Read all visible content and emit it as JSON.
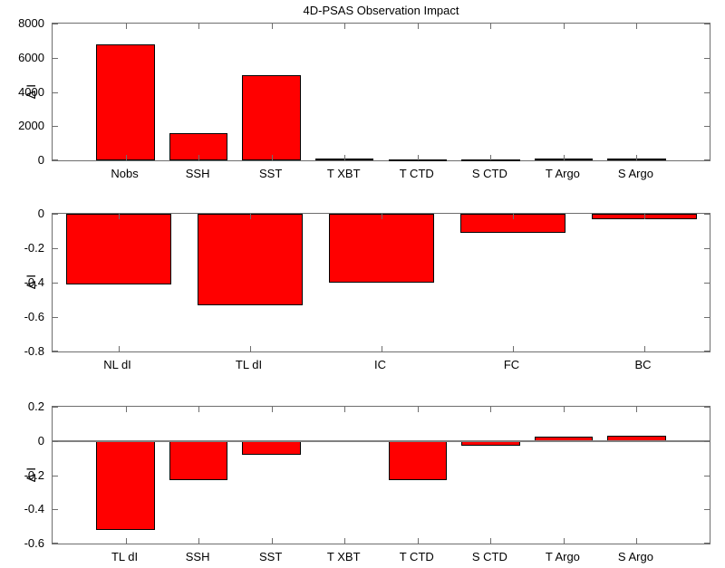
{
  "figure": {
    "background": "#ffffff",
    "bar_fill_color": "#ff0000",
    "bar_edge_color": "#000000",
    "axis_color": "#6e6e6e",
    "zero_line_color": "#808080"
  },
  "chart_data": [
    {
      "type": "bar",
      "title": "4D-PSAS Observation Impact",
      "ylabel": "Δ I",
      "xlabel": "",
      "categories": [
        "Nobs",
        "SSH",
        "SST",
        "T XBT",
        "T CTD",
        "S CTD",
        "T Argo",
        "S Argo"
      ],
      "values": [
        6800,
        1580,
        5000,
        80,
        30,
        30,
        120,
        120
      ],
      "ylim": [
        0,
        8000
      ],
      "yticks": [
        0,
        2000,
        4000,
        6000,
        8000
      ],
      "ytick_labels": [
        "0",
        "2000",
        "4000",
        "6000",
        "8000"
      ],
      "edge_pad": 1.0,
      "bar_frac": 0.8,
      "grid": false,
      "legend": null,
      "zero_line": false
    },
    {
      "type": "bar",
      "title": "",
      "ylabel": "Δ I",
      "xlabel": "",
      "categories": [
        "NL dI",
        "TL dI",
        "IC",
        "FC",
        "BC"
      ],
      "values": [
        -0.41,
        -0.53,
        -0.4,
        -0.11,
        -0.03
      ],
      "ylim": [
        -0.8,
        0
      ],
      "yticks": [
        0,
        -0.2,
        -0.4,
        -0.6,
        -0.8
      ],
      "ytick_labels": [
        "0",
        "-0.2",
        "-0.4",
        "-0.6",
        "-0.8"
      ],
      "edge_pad": 0.5,
      "bar_frac": 0.8,
      "grid": false,
      "legend": null,
      "zero_line": false
    },
    {
      "type": "bar",
      "title": "",
      "ylabel": "Δ I",
      "xlabel": "",
      "categories": [
        "TL dI",
        "SSH",
        "SST",
        "T XBT",
        "T CTD",
        "S CTD",
        "T Argo",
        "S Argo"
      ],
      "values": [
        -0.52,
        -0.23,
        -0.08,
        0,
        -0.23,
        -0.03,
        0.025,
        0.03
      ],
      "ylim": [
        -0.6,
        0.2
      ],
      "yticks": [
        0.2,
        0,
        -0.2,
        -0.4,
        -0.6
      ],
      "ytick_labels": [
        "0.2",
        "0",
        "-0.2",
        "-0.4",
        "-0.6"
      ],
      "edge_pad": 1.0,
      "bar_frac": 0.8,
      "grid": false,
      "legend": null,
      "zero_line": true
    }
  ]
}
